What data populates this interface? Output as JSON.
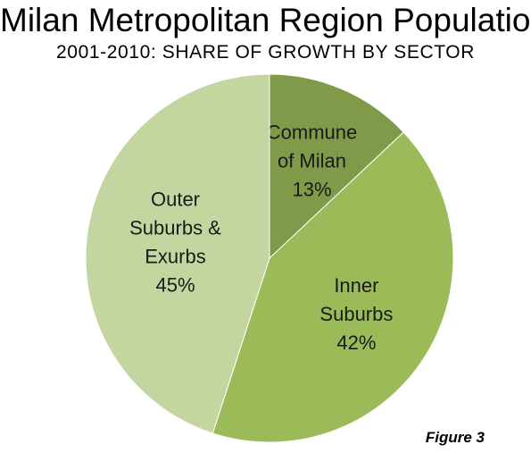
{
  "chart_data": {
    "type": "pie",
    "title": "Milan Metropolitan Region Population",
    "subtitle": "2001-2010: SHARE OF GROWTH BY SECTOR",
    "slices": [
      {
        "label_lines": [
          "Commune",
          "of Milan"
        ],
        "value": 13,
        "value_label": "13%",
        "color": "#7f9a48"
      },
      {
        "label_lines": [
          "Inner",
          "Suburbs"
        ],
        "value": 42,
        "value_label": "42%",
        "color": "#9bbb59"
      },
      {
        "label_lines": [
          "Outer",
          "Suburbs &",
          "Exurbs"
        ],
        "value": 45,
        "value_label": "45%",
        "color": "#c4d6a0"
      }
    ],
    "start_angle": "top",
    "direction": "clockwise"
  },
  "footer": {
    "figure_label": "Figure 3"
  }
}
